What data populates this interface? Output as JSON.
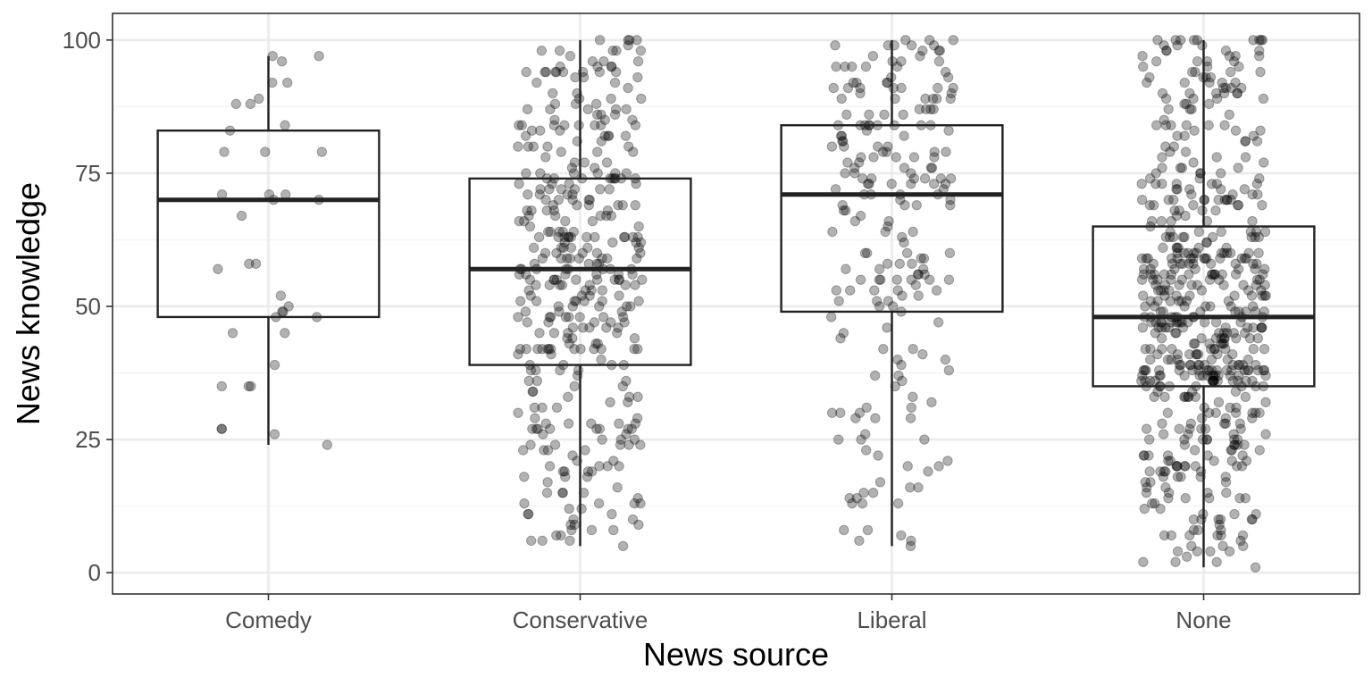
{
  "chart_data": {
    "type": "boxplot",
    "xlabel": "News source",
    "ylabel": "News knowledge",
    "ylim": [
      -4,
      105
    ],
    "yticks": [
      0,
      25,
      50,
      75,
      100
    ],
    "yticks_minor": [
      12.5,
      37.5,
      62.5,
      87.5
    ],
    "grid": true,
    "legend": "none",
    "colors": {
      "box_stroke": "#222222",
      "point_fill": "#000000",
      "grid_major": "#ebebeb",
      "grid_minor": "#f3f3f3",
      "panel_border": "#333333"
    },
    "categories": [
      "Comedy",
      "Conservative",
      "Liberal",
      "None"
    ],
    "boxes": [
      {
        "category": "Comedy",
        "whisker_low": 24,
        "q1": 48,
        "median": 70,
        "q3": 83,
        "whisker_high": 97
      },
      {
        "category": "Conservative",
        "whisker_low": 5,
        "q1": 39,
        "median": 57,
        "q3": 74,
        "whisker_high": 100
      },
      {
        "category": "Liberal",
        "whisker_low": 5,
        "q1": 49,
        "median": 71,
        "q3": 84,
        "whisker_high": 100
      },
      {
        "category": "None",
        "whisker_low": 1,
        "q1": 35,
        "median": 48,
        "q3": 65,
        "whisker_high": 100
      }
    ],
    "points": [
      {
        "category": "Comedy",
        "values": [
          97,
          97,
          96,
          92,
          92,
          89,
          88,
          88,
          84,
          83,
          79,
          79,
          79,
          71,
          71,
          71,
          70,
          70,
          67,
          58,
          58,
          57,
          52,
          50,
          49,
          49,
          48,
          48,
          45,
          45,
          39,
          35,
          35,
          35,
          27,
          27,
          26,
          24
        ]
      },
      {
        "category": "Conservative",
        "n": 380,
        "min": 5,
        "max": 100
      },
      {
        "category": "Liberal",
        "n": 210,
        "min": 5,
        "max": 100
      },
      {
        "category": "None",
        "n": 560,
        "min": 1,
        "max": 100
      }
    ]
  }
}
